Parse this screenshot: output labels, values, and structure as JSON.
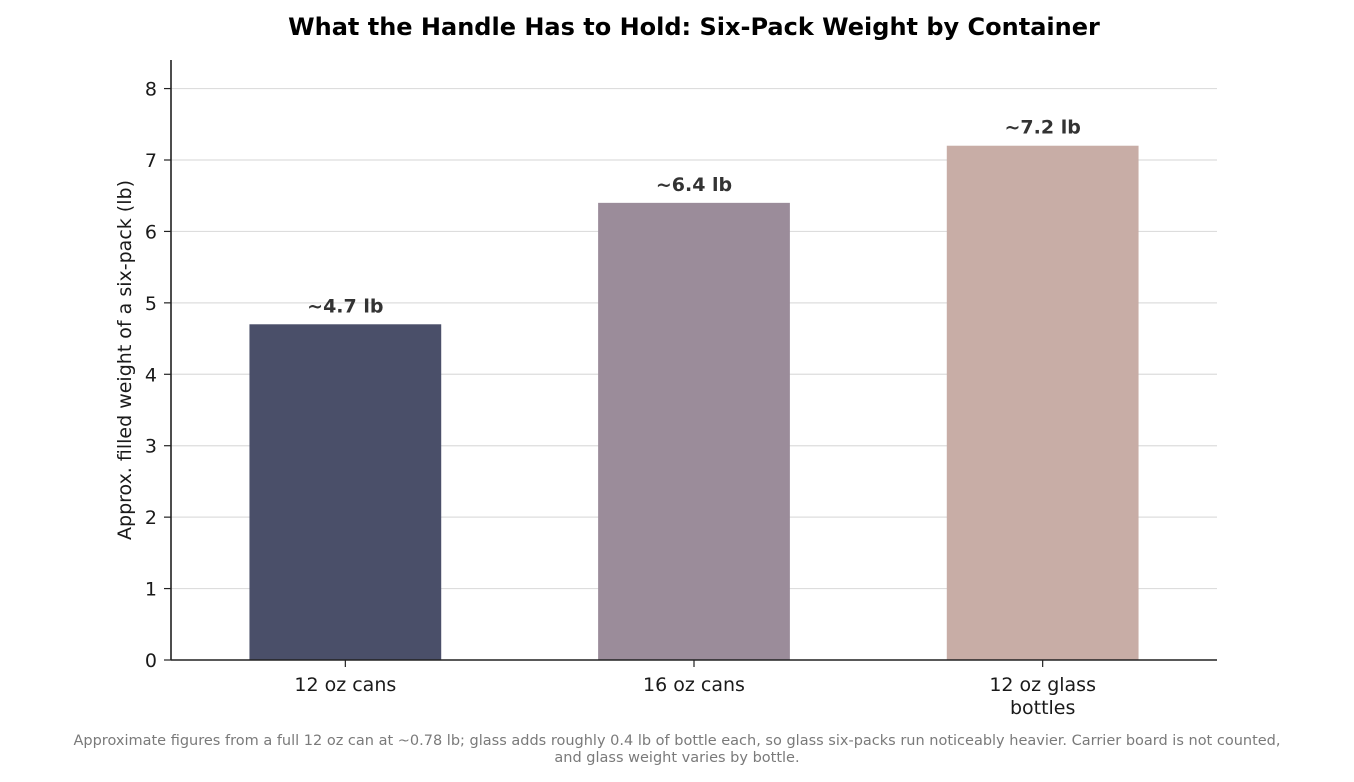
{
  "chart_data": {
    "type": "bar",
    "title": "What the Handle Has to Hold: Six-Pack Weight by Container",
    "xlabel": "",
    "ylabel": "Approx. filled weight of a six-pack (lb)",
    "categories": [
      [
        "12 oz cans"
      ],
      [
        "16 oz cans"
      ],
      [
        "12 oz glass",
        "bottles"
      ]
    ],
    "values": [
      4.7,
      6.4,
      7.2
    ],
    "value_labels": [
      "~4.7 lb",
      "~6.4 lb",
      "~7.2 lb"
    ],
    "colors": [
      "#4a4f69",
      "#9b8c9a",
      "#c8ada6"
    ],
    "ylim": [
      0,
      8.4
    ],
    "yticks": [
      0,
      1,
      2,
      3,
      4,
      5,
      6,
      7,
      8
    ],
    "grid": "horizontal",
    "grid_color": "#dddddd",
    "axis_color": "#222222",
    "legend": "none"
  },
  "footnote": {
    "line1": "Approximate figures from a full 12 oz can at ~0.78 lb; glass adds roughly 0.4 lb of bottle each, so glass six-packs run noticeably heavier. Carrier board is not counted,",
    "line2": "and glass weight varies by bottle."
  }
}
